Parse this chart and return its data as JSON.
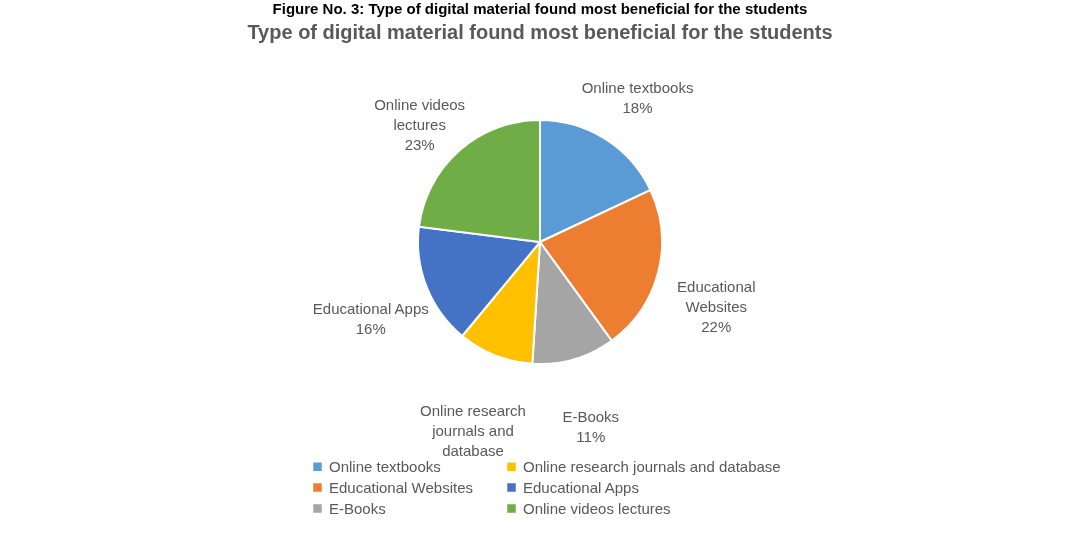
{
  "chart_data": {
    "type": "pie",
    "title": "Type of digital material found most beneficial for the students",
    "annotations": [
      "Figure No. 3: Type of digital material found most beneficial for the students"
    ],
    "categories": [
      "Online textbooks",
      "Educational Websites",
      "E-Books",
      "Online research journals and database",
      "Educational Apps",
      "Online videos lectures"
    ],
    "values": [
      18,
      22,
      11,
      10,
      16,
      23
    ],
    "value_labels": [
      "18%",
      "22%",
      "11%",
      null,
      "16%",
      "23%"
    ],
    "colors": [
      "#5b9bd5",
      "#ed7d31",
      "#a5a5a5",
      "#ffc000",
      "#4472c4",
      "#70ad47"
    ],
    "legend": "bottom"
  }
}
